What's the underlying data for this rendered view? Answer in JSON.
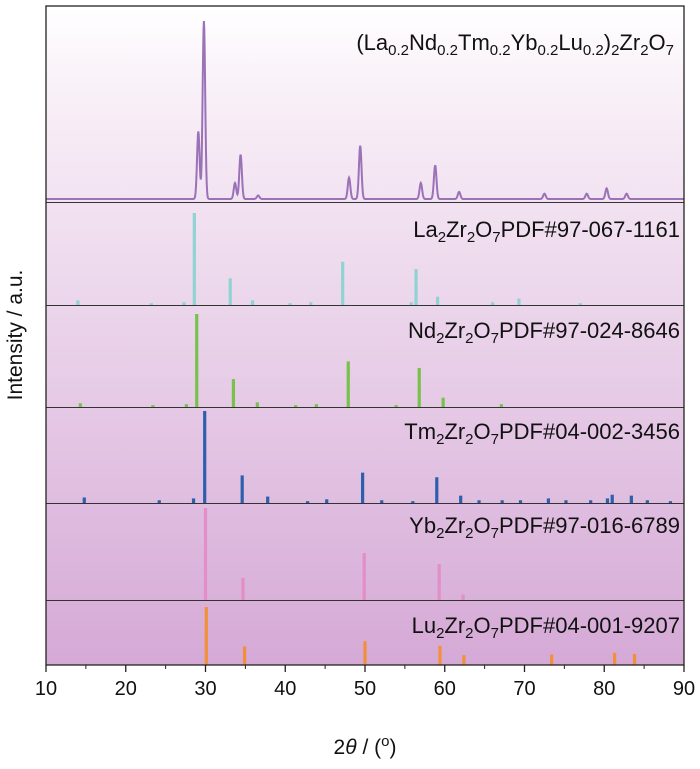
{
  "chart_data": {
    "type": "line",
    "xlabel": "2θ / (°)",
    "ylabel": "Intensity / a.u.",
    "xlim": [
      10,
      90
    ],
    "xticks": [
      10,
      20,
      30,
      40,
      50,
      60,
      70,
      80,
      90
    ],
    "xticklabels": [
      "10",
      "20",
      "30",
      "40",
      "50",
      "60",
      "70",
      "80",
      "90"
    ],
    "grid": false,
    "panels": [
      {
        "name": "(La0.2Nd0.2Tm0.2Yb0.2Lu0.2)2Zr2O7",
        "kind": "pattern",
        "color": "#9b72b8",
        "peaks": [
          {
            "x": 29.1,
            "y": 0.38
          },
          {
            "x": 29.8,
            "y": 1.0
          },
          {
            "x": 33.7,
            "y": 0.09
          },
          {
            "x": 34.4,
            "y": 0.25
          },
          {
            "x": 36.6,
            "y": 0.02
          },
          {
            "x": 48.0,
            "y": 0.12
          },
          {
            "x": 49.4,
            "y": 0.3
          },
          {
            "x": 57.0,
            "y": 0.09
          },
          {
            "x": 58.8,
            "y": 0.19
          },
          {
            "x": 61.8,
            "y": 0.04
          },
          {
            "x": 72.5,
            "y": 0.03
          },
          {
            "x": 77.8,
            "y": 0.03
          },
          {
            "x": 80.3,
            "y": 0.06
          },
          {
            "x": 82.8,
            "y": 0.03
          }
        ]
      },
      {
        "name": "La2Zr2O7PDF#97-067-1161",
        "kind": "sticks",
        "color": "#8fd3d3",
        "sticks": [
          {
            "x": 14.0,
            "y": 0.05
          },
          {
            "x": 23.2,
            "y": 0.02
          },
          {
            "x": 27.3,
            "y": 0.03
          },
          {
            "x": 28.6,
            "y": 1.0
          },
          {
            "x": 33.1,
            "y": 0.29
          },
          {
            "x": 35.9,
            "y": 0.05
          },
          {
            "x": 40.6,
            "y": 0.02
          },
          {
            "x": 43.2,
            "y": 0.03
          },
          {
            "x": 47.2,
            "y": 0.47
          },
          {
            "x": 55.8,
            "y": 0.03
          },
          {
            "x": 56.4,
            "y": 0.39
          },
          {
            "x": 59.1,
            "y": 0.09
          },
          {
            "x": 66.0,
            "y": 0.03
          },
          {
            "x": 69.3,
            "y": 0.07
          },
          {
            "x": 77.0,
            "y": 0.02
          }
        ]
      },
      {
        "name": "Nd2Zr2O7PDF#97-024-8646",
        "kind": "sticks",
        "color": "#77c24a",
        "sticks": [
          {
            "x": 14.3,
            "y": 0.04
          },
          {
            "x": 23.4,
            "y": 0.02
          },
          {
            "x": 27.6,
            "y": 0.03
          },
          {
            "x": 28.9,
            "y": 1.0
          },
          {
            "x": 33.5,
            "y": 0.3
          },
          {
            "x": 36.5,
            "y": 0.05
          },
          {
            "x": 41.3,
            "y": 0.02
          },
          {
            "x": 43.9,
            "y": 0.03
          },
          {
            "x": 47.9,
            "y": 0.49
          },
          {
            "x": 53.9,
            "y": 0.02
          },
          {
            "x": 56.8,
            "y": 0.42
          },
          {
            "x": 59.8,
            "y": 0.1
          },
          {
            "x": 67.1,
            "y": 0.03
          }
        ]
      },
      {
        "name": "Tm2Zr2O7PDF#04-002-3456",
        "kind": "sticks",
        "color": "#2d5fad",
        "sticks": [
          {
            "x": 14.8,
            "y": 0.06
          },
          {
            "x": 24.2,
            "y": 0.03
          },
          {
            "x": 28.5,
            "y": 0.05
          },
          {
            "x": 29.9,
            "y": 1.0
          },
          {
            "x": 34.6,
            "y": 0.3
          },
          {
            "x": 37.8,
            "y": 0.07
          },
          {
            "x": 42.8,
            "y": 0.02
          },
          {
            "x": 45.2,
            "y": 0.04
          },
          {
            "x": 49.7,
            "y": 0.33
          },
          {
            "x": 52.1,
            "y": 0.03
          },
          {
            "x": 56.0,
            "y": 0.02
          },
          {
            "x": 59.0,
            "y": 0.28
          },
          {
            "x": 62.0,
            "y": 0.08
          },
          {
            "x": 64.3,
            "y": 0.03
          },
          {
            "x": 67.2,
            "y": 0.03
          },
          {
            "x": 69.5,
            "y": 0.03
          },
          {
            "x": 73.0,
            "y": 0.05
          },
          {
            "x": 75.2,
            "y": 0.03
          },
          {
            "x": 78.3,
            "y": 0.03
          },
          {
            "x": 80.4,
            "y": 0.05
          },
          {
            "x": 81.0,
            "y": 0.09
          },
          {
            "x": 83.4,
            "y": 0.08
          },
          {
            "x": 85.4,
            "y": 0.03
          },
          {
            "x": 88.3,
            "y": 0.02
          }
        ]
      },
      {
        "name": "Yb2Zr2O7PDF#97-016-6789",
        "kind": "sticks",
        "color": "#e38ec6",
        "sticks": [
          {
            "x": 30.0,
            "y": 1.0
          },
          {
            "x": 34.7,
            "y": 0.24
          },
          {
            "x": 49.9,
            "y": 0.51
          },
          {
            "x": 59.3,
            "y": 0.39
          },
          {
            "x": 62.3,
            "y": 0.06
          }
        ]
      },
      {
        "name": "Lu2Zr2O7PDF#04-001-9207",
        "kind": "sticks",
        "color": "#f2903a",
        "sticks": [
          {
            "x": 30.1,
            "y": 1.0
          },
          {
            "x": 34.9,
            "y": 0.32
          },
          {
            "x": 50.0,
            "y": 0.41
          },
          {
            "x": 59.4,
            "y": 0.33
          },
          {
            "x": 62.4,
            "y": 0.17
          },
          {
            "x": 73.4,
            "y": 0.18
          },
          {
            "x": 81.3,
            "y": 0.21
          },
          {
            "x": 83.8,
            "y": 0.19
          }
        ]
      }
    ]
  }
}
